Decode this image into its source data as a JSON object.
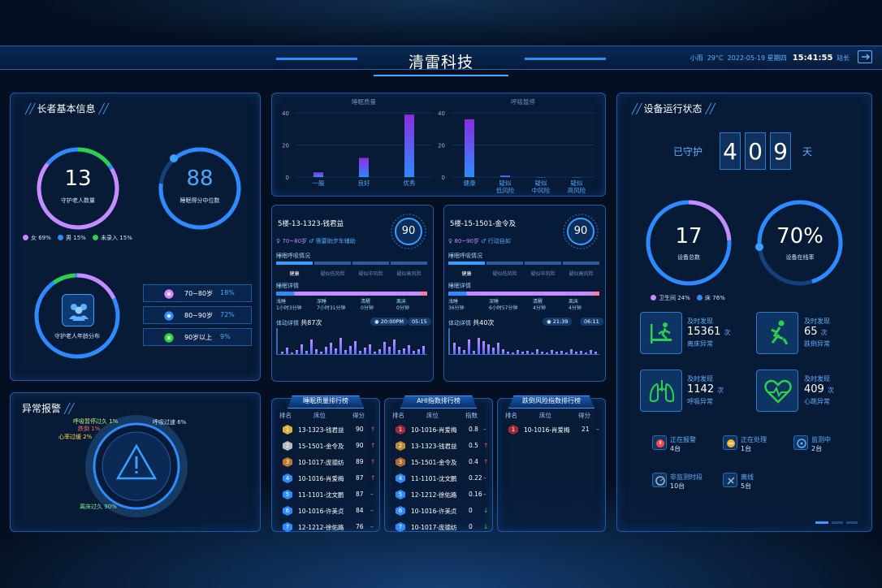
{
  "header": {
    "title": "清雷科技",
    "weather": "小雨",
    "temp": "29°C",
    "date": "2022-05-19",
    "weekday": "星期四",
    "time": "15:41:55",
    "user": "站长"
  },
  "elderly": {
    "title": "长者基本信息",
    "total": "13",
    "total_label": "守护老人数量",
    "sleep_score": "88",
    "sleep_score_label": "睡眠得分中位数",
    "gender_legend": [
      {
        "label": "女 69%",
        "color": "#c58bff"
      },
      {
        "label": "男 15%",
        "color": "#2e8bff"
      },
      {
        "label": "未录入 15%",
        "color": "#2bd14a"
      }
    ],
    "age_label": "守护老人年龄分布",
    "age_rows": [
      {
        "range": "70~80岁",
        "pct": "18%",
        "color": "#c58bff"
      },
      {
        "range": "80~90岁",
        "pct": "72%",
        "color": "#2e8bff"
      },
      {
        "range": "90岁以上",
        "pct": "9%",
        "color": "#2bd14a"
      }
    ]
  },
  "alarm": {
    "title": "异常报警",
    "labels": [
      {
        "text": "呼吸暂停过久 1%"
      },
      {
        "text": "跌倒 1%"
      },
      {
        "text": "心率过缓 2%"
      },
      {
        "text": "呼吸过速 6%"
      },
      {
        "text": "离床过久 90%"
      }
    ]
  },
  "charts": {
    "chart_data": [
      {
        "type": "bar",
        "title": "睡眠质量",
        "categories": [
          "一般",
          "良好",
          "优秀"
        ],
        "values": [
          3,
          12,
          39
        ],
        "ylim": [
          0,
          40
        ],
        "yticks": [
          "0",
          "20",
          "40"
        ]
      },
      {
        "type": "bar",
        "title": "呼吸暂停",
        "categories": [
          "健康",
          "疑似低风险",
          "疑似中风险",
          "疑似高风险"
        ],
        "values": [
          36,
          1,
          0,
          0
        ],
        "ylim": [
          0,
          40
        ],
        "yticks": [
          "0",
          "20",
          "40"
        ]
      }
    ]
  },
  "cards": [
    {
      "name": "5楼-13-1323-钱君益",
      "score": "90",
      "age": "70~80岁",
      "assist": "需要助步车辅助",
      "breath_label": "睡眠呼吸情况",
      "risks": [
        "健康",
        "疑似低风险",
        "疑似中风险",
        "疑似高风险"
      ],
      "detail_label": "睡眠详情",
      "stages": [
        {
          "t": "浅睡",
          "v": "1小时3分钟"
        },
        {
          "t": "深睡",
          "v": "7小时31分钟"
        },
        {
          "t": "清醒",
          "v": "0分钟"
        },
        {
          "t": "离床",
          "v": "0分钟"
        }
      ],
      "move_label": "体动详情",
      "move_count": "共87次",
      "time_a": "20:00PM",
      "time_b": "05:15"
    },
    {
      "name": "5楼-15-1501-金令及",
      "score": "90",
      "age": "80~90岁",
      "assist": "行动自如",
      "breath_label": "睡眠呼吸情况",
      "risks": [
        "健康",
        "疑似低风险",
        "疑似中风险",
        "疑似高风险"
      ],
      "detail_label": "睡眠详情",
      "stages": [
        {
          "t": "浅睡",
          "v": "36分钟"
        },
        {
          "t": "深睡",
          "v": "6小时57分钟"
        },
        {
          "t": "清醒",
          "v": "4分钟"
        },
        {
          "t": "离床",
          "v": "4分钟"
        }
      ],
      "move_label": "体动详情",
      "move_count": "共40次",
      "time_a": "21:39",
      "time_b": "06:11"
    }
  ],
  "rank_sleep": {
    "title": "睡眠质量排行榜",
    "headers": [
      "排名",
      "床位",
      "得分"
    ],
    "rows": [
      {
        "r": "1",
        "bed": "13-1323-钱君益",
        "v": "90",
        "t": "↑"
      },
      {
        "r": "2",
        "bed": "15-1501-金令及",
        "v": "90",
        "t": "↑"
      },
      {
        "r": "3",
        "bed": "10-1017-庞德纺",
        "v": "89",
        "t": "↑"
      },
      {
        "r": "4",
        "bed": "10-1016-肖爱梅",
        "v": "87",
        "t": "↑"
      },
      {
        "r": "5",
        "bed": "11-1101-沈文鹏",
        "v": "87",
        "t": "–"
      },
      {
        "r": "6",
        "bed": "10-1016-许美贞",
        "v": "84",
        "t": "–"
      },
      {
        "r": "7",
        "bed": "12-1212-徐佑路",
        "v": "76",
        "t": "–"
      }
    ]
  },
  "rank_ahi": {
    "title": "AHI指数排行榜",
    "headers": [
      "排名",
      "床位",
      "指数"
    ],
    "rows": [
      {
        "r": "1",
        "bed": "10-1016-肖爱梅",
        "v": "0.8",
        "t": "–"
      },
      {
        "r": "2",
        "bed": "13-1323-钱君益",
        "v": "0.5",
        "t": "↑"
      },
      {
        "r": "3",
        "bed": "15-1501-金令及",
        "v": "0.4",
        "t": "↑"
      },
      {
        "r": "4",
        "bed": "11-1101-沈文鹏",
        "v": "0.22",
        "t": "–"
      },
      {
        "r": "5",
        "bed": "12-1212-徐佑路",
        "v": "0.16",
        "t": "–"
      },
      {
        "r": "6",
        "bed": "10-1016-许美贞",
        "v": "0",
        "t": "↓"
      },
      {
        "r": "7",
        "bed": "10-1017-庞德纺",
        "v": "0",
        "t": "↓"
      }
    ]
  },
  "rank_fall": {
    "title": "跌倒风险指数排行榜",
    "headers": [
      "排名",
      "床位",
      "得分"
    ],
    "rows": [
      {
        "r": "1",
        "bed": "10-1016-肖爱梅",
        "v": "21",
        "t": "–"
      }
    ]
  },
  "device": {
    "title": "设备运行状态",
    "guard_label": "已守护",
    "days": [
      "4",
      "0",
      "9"
    ],
    "days_unit": "天",
    "device_total": "17",
    "device_total_label": "设备总数",
    "online": "70%",
    "online_label": "设备在线率",
    "type_legend": [
      {
        "label": "卫生间 24%",
        "color": "#c58bff"
      },
      {
        "label": "床 76%",
        "color": "#2e8bff"
      }
    ],
    "detect": [
      {
        "label": "及时发现",
        "count": "15361",
        "unit": "次",
        "desc": "离床异常"
      },
      {
        "label": "及时发现",
        "count": "65",
        "unit": "次",
        "desc": "跌倒异常"
      },
      {
        "label": "及时发现",
        "count": "1142",
        "unit": "次",
        "desc": "呼吸异常"
      },
      {
        "label": "及时发现",
        "count": "409",
        "unit": "次",
        "desc": "心跳异常"
      }
    ],
    "status": [
      {
        "label": "正在报警",
        "value": "4台"
      },
      {
        "label": "正在处理",
        "value": "1台"
      },
      {
        "label": "监测中",
        "value": "2台"
      },
      {
        "label": "非监测时段",
        "value": "10台"
      },
      {
        "label": "离线",
        "value": "5台"
      }
    ]
  }
}
